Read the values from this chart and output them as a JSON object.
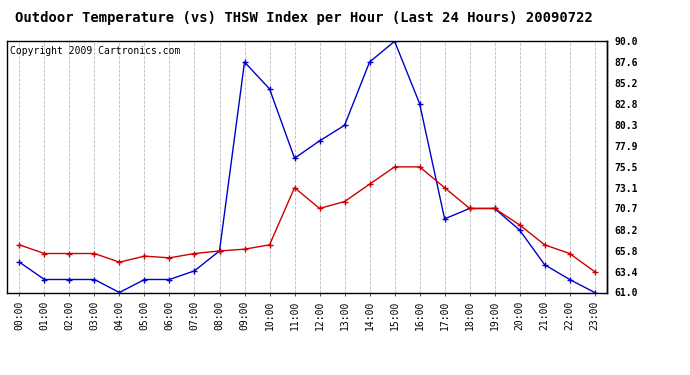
{
  "title": "Outdoor Temperature (vs) THSW Index per Hour (Last 24 Hours) 20090722",
  "copyright": "Copyright 2009 Cartronics.com",
  "hours": [
    "00:00",
    "01:00",
    "02:00",
    "03:00",
    "04:00",
    "05:00",
    "06:00",
    "07:00",
    "08:00",
    "09:00",
    "10:00",
    "11:00",
    "12:00",
    "13:00",
    "14:00",
    "15:00",
    "16:00",
    "17:00",
    "18:00",
    "19:00",
    "20:00",
    "21:00",
    "22:00",
    "23:00"
  ],
  "temp": [
    66.5,
    65.5,
    65.5,
    65.5,
    64.5,
    65.2,
    65.0,
    65.5,
    65.8,
    66.0,
    66.5,
    73.1,
    70.7,
    71.5,
    73.5,
    75.5,
    75.5,
    73.1,
    70.7,
    70.7,
    68.8,
    66.5,
    65.5,
    63.4
  ],
  "thsw": [
    64.5,
    62.5,
    62.5,
    62.5,
    61.0,
    62.5,
    62.5,
    63.5,
    65.8,
    87.6,
    84.5,
    76.5,
    78.5,
    80.3,
    87.6,
    90.0,
    82.8,
    69.5,
    70.7,
    70.7,
    68.2,
    64.2,
    62.5,
    61.0
  ],
  "ylim": [
    61.0,
    90.0
  ],
  "yticks": [
    61.0,
    63.4,
    65.8,
    68.2,
    70.7,
    73.1,
    75.5,
    77.9,
    80.3,
    82.8,
    85.2,
    87.6,
    90.0
  ],
  "temp_color": "#cc0000",
  "thsw_color": "#0000cc",
  "bg_color": "#ffffff",
  "plot_bg": "#ffffff",
  "grid_color": "#bbbbbb",
  "title_fontsize": 10,
  "copyright_fontsize": 7,
  "tick_fontsize": 7
}
